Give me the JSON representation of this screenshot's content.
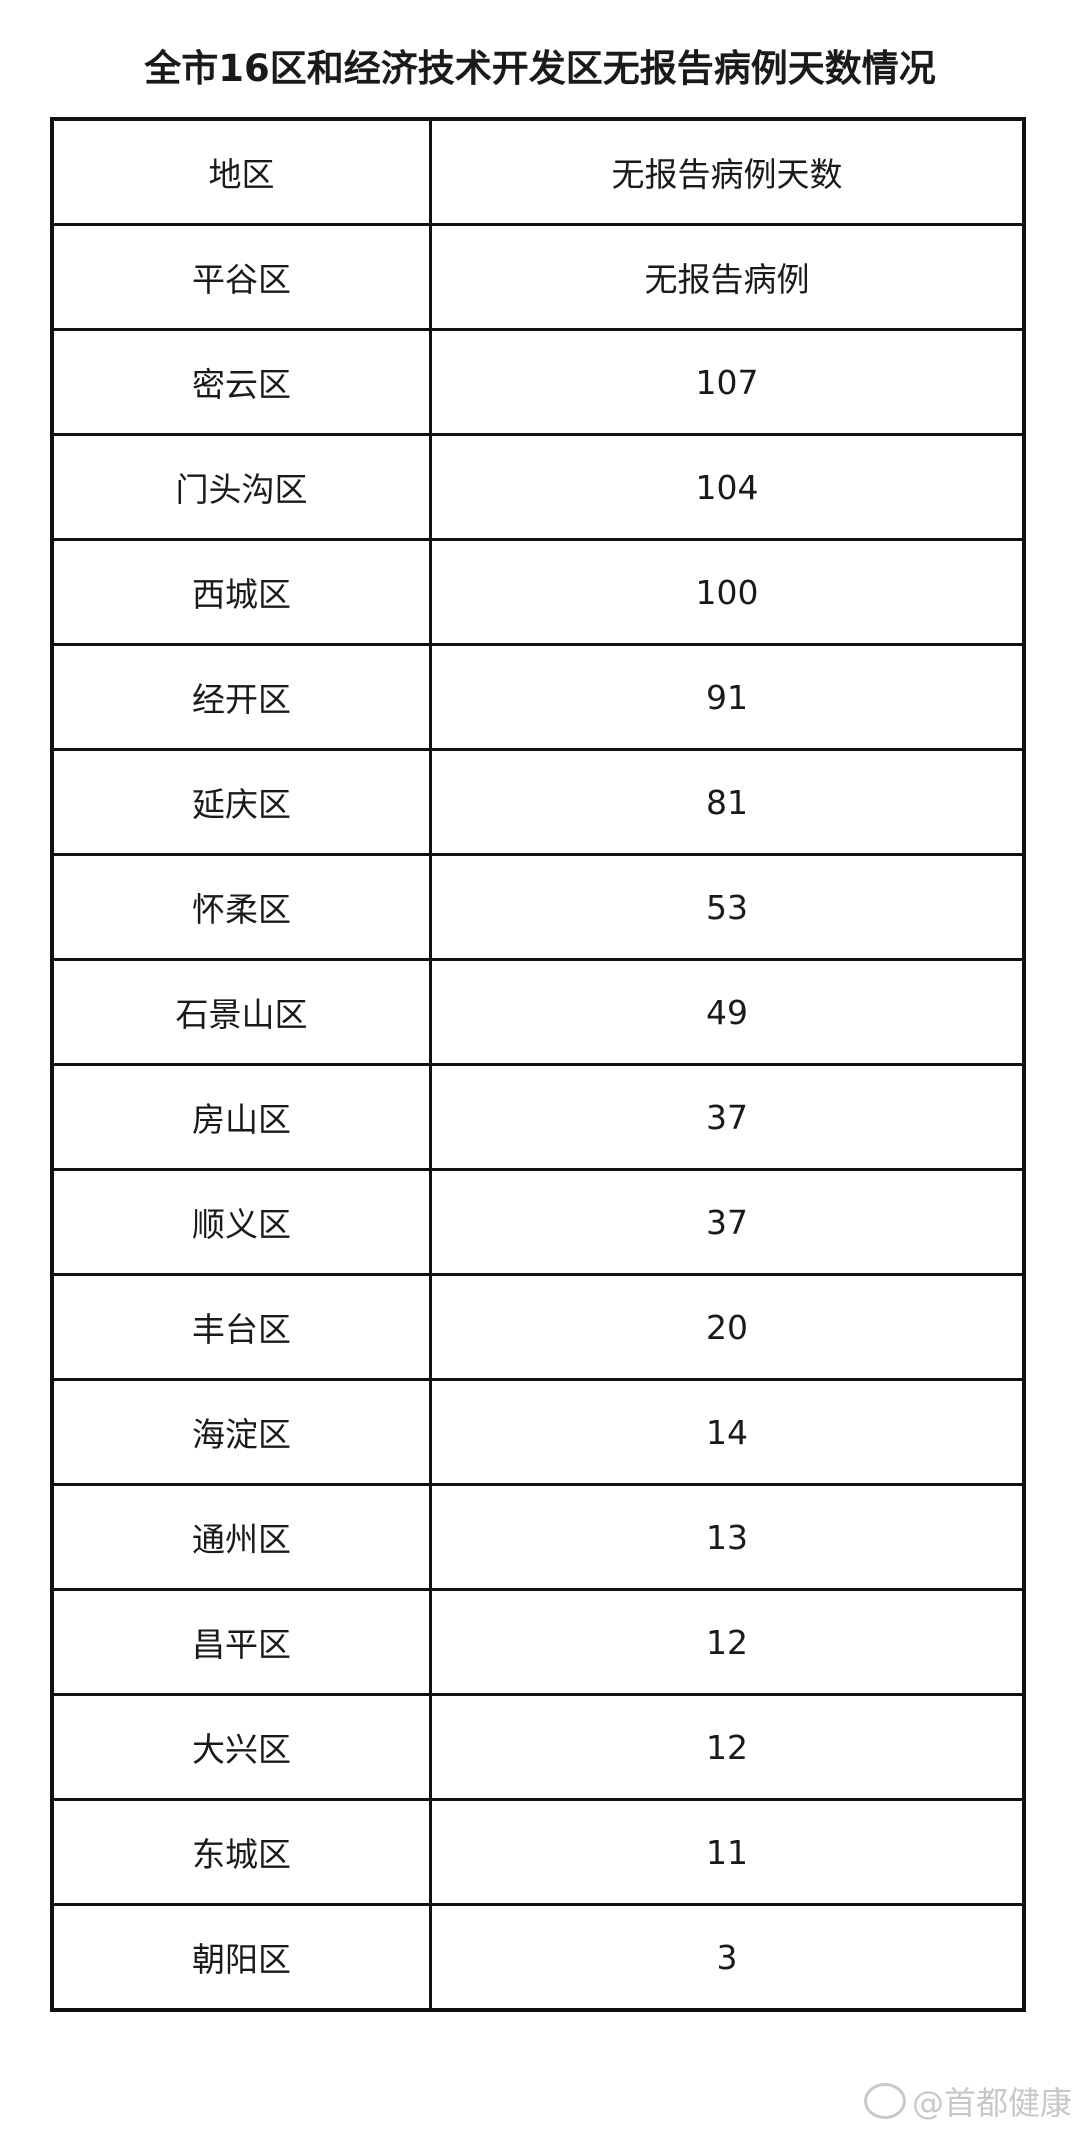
{
  "title": "全市16区和经济技术开发区无报告病例天数情况",
  "table": {
    "headers": [
      "地区",
      "无报告病例天数"
    ],
    "rows": [
      [
        "平谷区",
        "无报告病例"
      ],
      [
        "密云区",
        "107"
      ],
      [
        "门头沟区",
        "104"
      ],
      [
        "西城区",
        "100"
      ],
      [
        "经开区",
        "91"
      ],
      [
        "延庆区",
        "81"
      ],
      [
        "怀柔区",
        "53"
      ],
      [
        "石景山区",
        "49"
      ],
      [
        "房山区",
        "37"
      ],
      [
        "顺义区",
        "37"
      ],
      [
        "丰台区",
        "20"
      ],
      [
        "海淀区",
        "14"
      ],
      [
        "通州区",
        "13"
      ],
      [
        "昌平区",
        "12"
      ],
      [
        "大兴区",
        "12"
      ],
      [
        "东城区",
        "11"
      ],
      [
        "朝阳区",
        "3"
      ]
    ]
  },
  "watermark": {
    "icon": "weibo-icon",
    "text": "@首都健康"
  }
}
